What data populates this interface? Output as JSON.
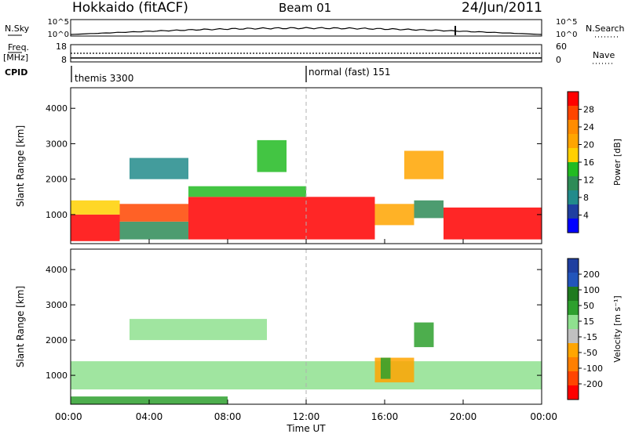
{
  "header": {
    "title": "Hokkaido (fitACF)",
    "beam": "Beam 01",
    "date": "24/Jun/2011"
  },
  "sky_panel": {
    "left_label": "N.Sky",
    "right_label": "N.Search",
    "yticks_left": [
      "10^5",
      "10^0"
    ],
    "yticks_right": [
      "10^5",
      "10^0"
    ]
  },
  "freq_panel": {
    "left_label_top": "Freq.",
    "left_label_unit": "[MHz]",
    "right_label": "Nave",
    "yticks_left": [
      "18",
      "8"
    ],
    "yticks_right": [
      "60",
      "0"
    ]
  },
  "cpid_panel": {
    "label": "CPID",
    "programs": [
      {
        "name": "themis 3300",
        "start_hour": 0
      },
      {
        "name": "normal (fast) 151",
        "start_hour": 12
      }
    ]
  },
  "power_colorbar": {
    "title": "Power [dB]",
    "ticks": [
      "28",
      "24",
      "20",
      "16",
      "12",
      "8",
      "4"
    ],
    "colors": [
      "#ff0000",
      "#ff4500",
      "#ff8c00",
      "#ffa500",
      "#ffd000",
      "#22bb22",
      "#2e8b57",
      "#228b8b",
      "#1f3fa0",
      "#0000ff"
    ]
  },
  "velocity_colorbar": {
    "title": "Velocity [m s⁻¹]",
    "ticks": [
      "200",
      "100",
      "50",
      "15",
      "-15",
      "-50",
      "-100",
      "-200"
    ],
    "colors": [
      "#1f3fa0",
      "#2255bb",
      "#1f7a1f",
      "#2ea02e",
      "#8fe08f",
      "#c0c0c0",
      "#ffa500",
      "#ff7f00",
      "#ff4500",
      "#ff0000"
    ]
  },
  "chart_data": [
    {
      "type": "heatmap",
      "name": "power",
      "ylabel": "Slant Range [km]",
      "xlabel": "Time UT",
      "x_ticks": [
        "00:00",
        "04:00",
        "08:00",
        "12:00",
        "16:00",
        "20:00",
        "00:00"
      ],
      "y_ticks": [
        1000,
        2000,
        3000,
        4000
      ],
      "xlim_hours": [
        0,
        24
      ],
      "ylim_km": [
        180,
        4580
      ],
      "colorbar_range": [
        0,
        30
      ],
      "regions": [
        {
          "t0": 0,
          "t1": 2.5,
          "r0": 250,
          "r1": 1000,
          "value": 27
        },
        {
          "t0": 0,
          "t1": 2.5,
          "r0": 1000,
          "r1": 1400,
          "value": 17
        },
        {
          "t0": 2.5,
          "t1": 6,
          "r0": 300,
          "r1": 800,
          "value": 9
        },
        {
          "t0": 2.5,
          "t1": 6,
          "r0": 800,
          "r1": 1300,
          "value": 24
        },
        {
          "t0": 3,
          "t1": 6,
          "r0": 2000,
          "r1": 2600,
          "value": 6
        },
        {
          "t0": 6,
          "t1": 12,
          "r0": 300,
          "r1": 1500,
          "value": 28
        },
        {
          "t0": 6,
          "t1": 12,
          "r0": 1500,
          "r1": 1800,
          "value": 14
        },
        {
          "t0": 9.5,
          "t1": 11,
          "r0": 2200,
          "r1": 3100,
          "value": 12
        },
        {
          "t0": 12,
          "t1": 15.5,
          "r0": 300,
          "r1": 1500,
          "value": 28
        },
        {
          "t0": 15.5,
          "t1": 17.5,
          "r0": 700,
          "r1": 1300,
          "value": 20
        },
        {
          "t0": 17.5,
          "t1": 19,
          "r0": 900,
          "r1": 1400,
          "value": 9
        },
        {
          "t0": 19,
          "t1": 24,
          "r0": 300,
          "r1": 1200,
          "value": 28
        },
        {
          "t0": 17,
          "t1": 19,
          "r0": 2000,
          "r1": 2800,
          "value": 20
        }
      ]
    },
    {
      "type": "heatmap",
      "name": "velocity",
      "ylabel": "Slant Range [km]",
      "xlabel": "Time UT",
      "x_ticks": [
        "00:00",
        "04:00",
        "08:00",
        "12:00",
        "16:00",
        "20:00",
        "00:00"
      ],
      "y_ticks": [
        1000,
        2000,
        3000,
        4000
      ],
      "xlim_hours": [
        0,
        24
      ],
      "ylim_km": [
        180,
        4580
      ],
      "colorbar_range": [
        -200,
        200
      ],
      "regions": [
        {
          "t0": 0,
          "t1": 24,
          "r0": 600,
          "r1": 1400,
          "value": 0
        },
        {
          "t0": 3,
          "t1": 10,
          "r0": 2000,
          "r1": 2600,
          "value": 0
        },
        {
          "t0": 15.5,
          "t1": 17.5,
          "r0": 800,
          "r1": 1500,
          "value": -50
        },
        {
          "t0": 15.8,
          "t1": 16.3,
          "r0": 900,
          "r1": 1500,
          "value": 60
        },
        {
          "t0": 17.5,
          "t1": 18.5,
          "r0": 1800,
          "r1": 2500,
          "value": 60
        },
        {
          "t0": 0,
          "t1": 8,
          "r0": 180,
          "r1": 400,
          "value": 40
        }
      ]
    }
  ]
}
